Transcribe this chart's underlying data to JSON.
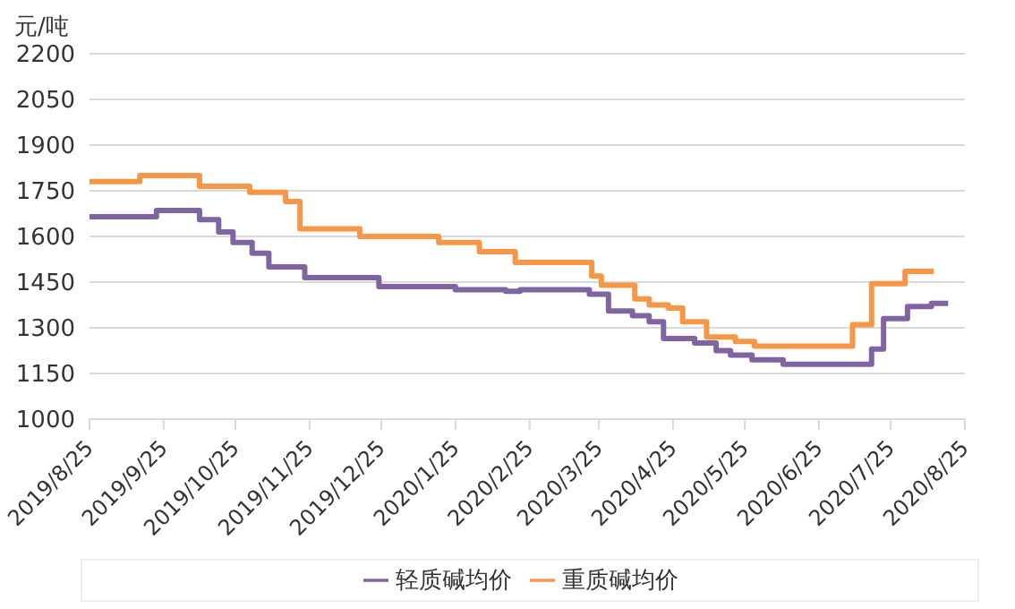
{
  "chart_data": {
    "type": "step",
    "ylabel": "元/吨",
    "xlim": [
      "2019-08-25",
      "2020-08-25"
    ],
    "xticks": [
      {
        "value": "2019-08-25",
        "label": "2019/8/25"
      },
      {
        "value": "2019-09-25",
        "label": "2019/9/25"
      },
      {
        "value": "2019-10-25",
        "label": "2019/10/25"
      },
      {
        "value": "2019-11-25",
        "label": "2019/11/25"
      },
      {
        "value": "2019-12-25",
        "label": "2019/12/25"
      },
      {
        "value": "2020-01-25",
        "label": "2020/1/25"
      },
      {
        "value": "2020-02-25",
        "label": "2020/2/25"
      },
      {
        "value": "2020-03-25",
        "label": "2020/3/25"
      },
      {
        "value": "2020-04-25",
        "label": "2020/4/25"
      },
      {
        "value": "2020-05-25",
        "label": "2020/5/25"
      },
      {
        "value": "2020-06-25",
        "label": "2020/6/25"
      },
      {
        "value": "2020-07-25",
        "label": "2020/7/25"
      },
      {
        "value": "2020-08-25",
        "label": "2020/8/25"
      }
    ],
    "ylim": [
      1000,
      2200
    ],
    "yticks": [
      1000,
      1150,
      1300,
      1450,
      1600,
      1750,
      1900,
      2050,
      2200
    ],
    "grid": "y",
    "legend": "bottom",
    "marker": "none",
    "line_style": "solid",
    "series": [
      {
        "name": "轻质碱均价",
        "color": "#8064a2",
        "x": [
          "2019-08-25",
          "2019-09-22",
          "2019-10-10",
          "2019-10-18",
          "2019-10-24",
          "2019-11-01",
          "2019-11-08",
          "2019-11-23",
          "2019-12-24",
          "2020-01-25",
          "2020-02-15",
          "2020-02-21",
          "2020-03-21",
          "2020-03-29",
          "2020-04-08",
          "2020-04-15",
          "2020-04-21",
          "2020-05-04",
          "2020-05-13",
          "2020-05-19",
          "2020-05-28",
          "2020-06-10",
          "2020-07-17",
          "2020-07-22",
          "2020-08-01",
          "2020-08-11",
          "2020-08-18"
        ],
        "values": [
          1665,
          1685,
          1655,
          1615,
          1580,
          1545,
          1500,
          1465,
          1435,
          1425,
          1420,
          1425,
          1410,
          1355,
          1340,
          1320,
          1265,
          1250,
          1225,
          1210,
          1195,
          1180,
          1230,
          1330,
          1370,
          1380,
          1380
        ]
      },
      {
        "name": "重质碱均价",
        "color": "#f79646",
        "x": [
          "2019-08-25",
          "2019-09-15",
          "2019-10-10",
          "2019-10-31",
          "2019-11-15",
          "2019-11-21",
          "2019-12-16",
          "2020-01-18",
          "2020-02-04",
          "2020-02-19",
          "2020-03-22",
          "2020-03-26",
          "2020-04-09",
          "2020-04-15",
          "2020-04-23",
          "2020-04-29",
          "2020-05-09",
          "2020-05-21",
          "2020-05-29",
          "2020-07-09",
          "2020-07-17",
          "2020-07-31",
          "2020-08-12"
        ],
        "values": [
          1780,
          1800,
          1765,
          1745,
          1715,
          1625,
          1600,
          1580,
          1550,
          1515,
          1470,
          1440,
          1395,
          1375,
          1365,
          1320,
          1270,
          1255,
          1240,
          1310,
          1445,
          1485,
          1485
        ]
      }
    ]
  }
}
